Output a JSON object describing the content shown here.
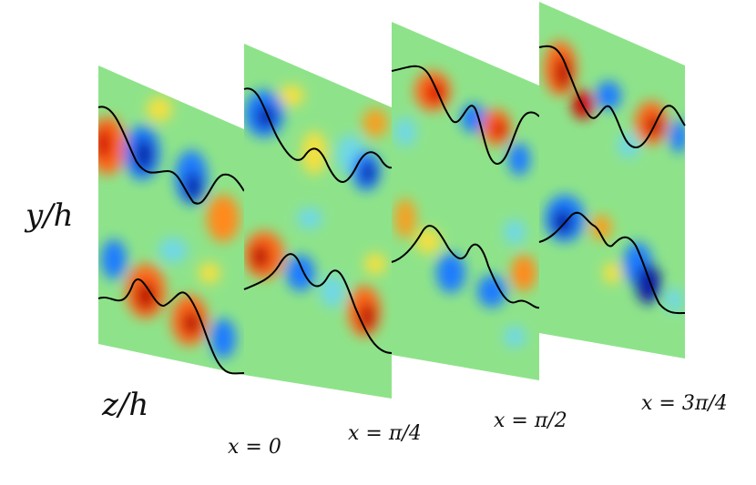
{
  "axis_labels": {
    "vertical": "y/h",
    "horizontal": "z/h"
  },
  "slices": [
    {
      "label": "x = 0"
    },
    {
      "label": "x = π/4"
    },
    {
      "label": "x = π/2"
    },
    {
      "label": "x = 3π/4"
    }
  ],
  "colors": {
    "background_field": "#8ee38a",
    "positive_strong": "#b80000",
    "positive": "#ff6a1a",
    "positive_weak": "#f4e040",
    "negative_weak": "#6fd8e6",
    "negative": "#1e7bff",
    "negative_strong": "#0a1fa6",
    "interface_line": "#000000"
  }
}
